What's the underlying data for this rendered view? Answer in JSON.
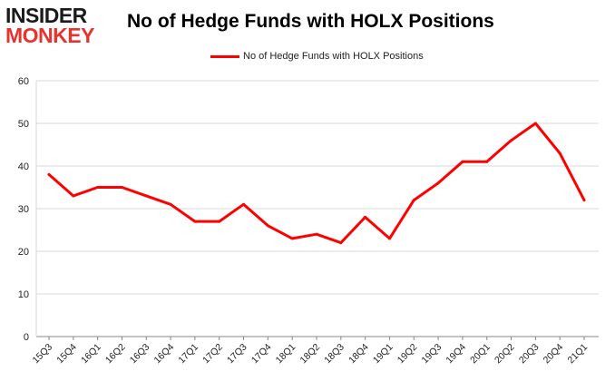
{
  "logo": {
    "line1": "INSIDER",
    "line2": "MONKEY"
  },
  "chart_data": {
    "type": "line",
    "title": "No of Hedge Funds with HOLX Positions",
    "xlabel": "",
    "ylabel": "",
    "categories": [
      "15Q3",
      "15Q4",
      "16Q1",
      "16Q2",
      "16Q3",
      "16Q4",
      "17Q1",
      "17Q2",
      "17Q3",
      "17Q4",
      "18Q1",
      "18Q2",
      "18Q3",
      "18Q4",
      "19Q1",
      "19Q2",
      "19Q3",
      "19Q4",
      "20Q1",
      "20Q2",
      "20Q3",
      "20Q4",
      "21Q1"
    ],
    "series": [
      {
        "name": "No of Hedge Funds with HOLX Positions",
        "color": "#ff0000",
        "values": [
          38,
          33,
          35,
          35,
          33,
          31,
          27,
          27,
          31,
          26,
          23,
          24,
          22,
          28,
          23,
          32,
          36,
          41,
          41,
          46,
          50,
          43,
          32
        ]
      }
    ],
    "ylim": [
      0,
      60
    ],
    "yticks": [
      0,
      10,
      20,
      30,
      40,
      50,
      60
    ],
    "grid": true,
    "legend_position": "top"
  }
}
